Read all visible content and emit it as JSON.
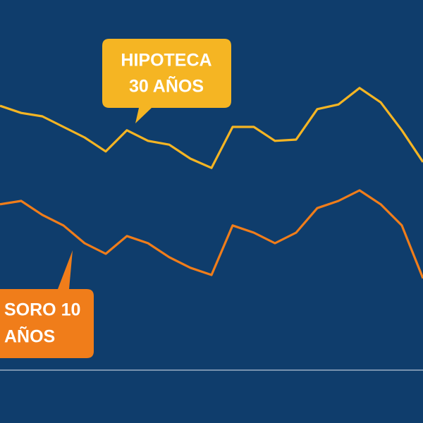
{
  "chart_data": {
    "type": "line",
    "x": [
      0,
      5,
      10,
      15,
      20,
      25,
      30,
      35,
      40,
      45,
      50,
      55,
      60,
      65,
      70,
      75,
      80,
      85,
      90,
      95,
      100
    ],
    "xlim": [
      0,
      100
    ],
    "ylim": [
      0,
      100
    ],
    "series": [
      {
        "name": [
          "HIPOTECA",
          "30 AÑOS"
        ],
        "color": "#f5b523",
        "values": [
          75,
          73.3,
          72.5,
          70,
          67.5,
          64.2,
          69.2,
          66.7,
          65.8,
          62.5,
          60.3,
          70,
          70,
          66.7,
          67,
          74.2,
          75.3,
          79.2,
          75.8,
          69.2,
          61.7
        ]
      },
      {
        "name": [
          "SORO 10",
          "AÑOS"
        ],
        "color": "#f07d1a",
        "values": [
          51.7,
          52.5,
          49.2,
          46.7,
          42.5,
          40,
          44.2,
          42.5,
          39.2,
          36.7,
          35,
          46.7,
          45,
          42.5,
          45,
          50.8,
          52.5,
          55,
          51.7,
          46.7,
          34.2
        ]
      }
    ]
  }
}
